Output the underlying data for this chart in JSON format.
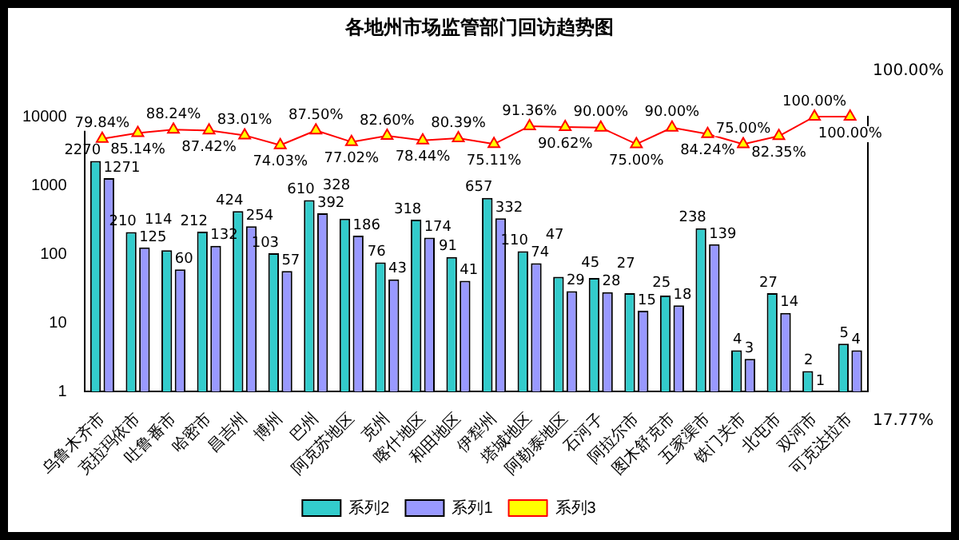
{
  "chart_data": {
    "type": "bar",
    "title": "各地州市场监管部门回访趋势图",
    "categories": [
      "乌鲁木齐市",
      "克拉玛依市",
      "吐鲁番市",
      "哈密市",
      "昌吉州",
      "博州",
      "巴州",
      "阿克苏地区",
      "克州",
      "喀什地区",
      "和田地区",
      "伊犁州",
      "塔城地区",
      "阿勒泰地区",
      "石河子",
      "阿拉尔市",
      "图木舒克市",
      "五家渠市",
      "铁门关市",
      "北屯市",
      "双河市",
      "可克达拉市"
    ],
    "series": [
      {
        "name": "系列2",
        "color": "#33cccc",
        "values": [
          2270,
          210,
          114,
          212,
          424,
          103,
          610,
          328,
          76,
          318,
          91,
          657,
          110,
          47,
          45,
          27,
          25,
          238,
          4,
          27,
          2,
          5
        ]
      },
      {
        "name": "系列1",
        "color": "#9999ff",
        "values": [
          1271,
          125,
          60,
          132,
          254,
          57,
          392,
          186,
          43,
          174,
          41,
          332,
          74,
          29,
          28,
          15,
          18,
          139,
          3,
          14,
          1,
          4
        ]
      },
      {
        "name": "系列3",
        "type": "line",
        "axis": "y2",
        "color": "#ff0000",
        "marker": "triangle",
        "values": [
          79.84,
          85.14,
          88.24,
          87.42,
          83.01,
          74.03,
          87.5,
          77.02,
          82.6,
          78.44,
          80.39,
          75.11,
          91.36,
          90.62,
          90,
          75,
          90,
          84.24,
          75,
          82.35,
          100,
          100
        ],
        "value_labels": [
          "79.84%",
          "85.14%",
          "88.24%",
          "87.42%",
          "83.01%",
          "74.03%",
          "87.50%",
          "77.02%",
          "82.60%",
          "78.44%",
          "80.39%",
          "75.11%",
          "91.36%",
          "90.62%",
          "90.00%",
          "75.00%",
          "90.00%",
          "84.24%",
          "75.00%",
          "82.35%",
          "100.00%",
          "100.00%"
        ]
      }
    ],
    "log": "y",
    "ylim": [
      1,
      10000
    ],
    "yticks": [
      1,
      10,
      100,
      1000,
      10000
    ],
    "annotations": [
      "100.00%",
      "17.77%"
    ],
    "data_labels": true,
    "legend": "bottom",
    "grid": false
  }
}
